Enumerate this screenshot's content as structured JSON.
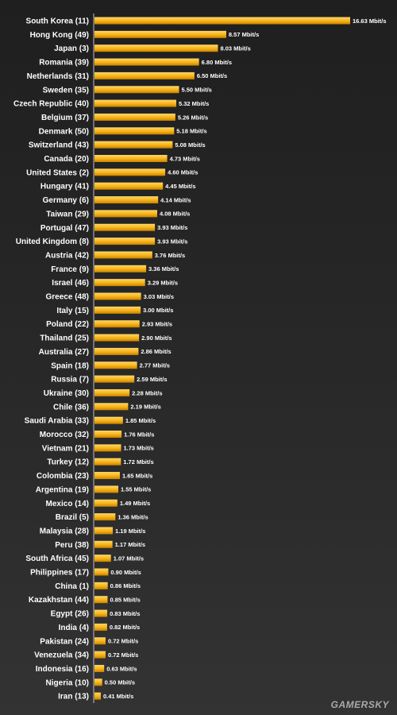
{
  "chart_data": {
    "type": "bar",
    "orientation": "horizontal",
    "categories": [
      "South Korea (11)",
      "Hong Kong (49)",
      "Japan (3)",
      "Romania (39)",
      "Netherlands (31)",
      "Sweden (35)",
      "Czech Republic (40)",
      "Belgium (37)",
      "Denmark (50)",
      "Switzerland (43)",
      "Canada (20)",
      "United States (2)",
      "Hungary (41)",
      "Germany (6)",
      "Taiwan (29)",
      "Portugal (47)",
      "United Kingdom (8)",
      "Austria (42)",
      "France (9)",
      "Israel (46)",
      "Greece (48)",
      "Italy (15)",
      "Poland (22)",
      "Thailand (25)",
      "Australia (27)",
      "Spain (18)",
      "Russia (7)",
      "Ukraine (30)",
      "Chile (36)",
      "Saudi Arabia (33)",
      "Morocco (32)",
      "Vietnam (21)",
      "Turkey (12)",
      "Colombia (23)",
      "Argentina (19)",
      "Mexico (14)",
      "Brazil (5)",
      "Malaysia (28)",
      "Peru (38)",
      "South Africa (45)",
      "Philippines (17)",
      "China (1)",
      "Kazakhstan (44)",
      "Egypt (26)",
      "India (4)",
      "Pakistan (24)",
      "Venezuela (34)",
      "Indonesia (16)",
      "Nigeria (10)",
      "Iran (13)"
    ],
    "values": [
      16.63,
      8.57,
      8.03,
      6.8,
      6.5,
      5.5,
      5.32,
      5.26,
      5.18,
      5.08,
      4.73,
      4.6,
      4.45,
      4.14,
      4.08,
      3.93,
      3.93,
      3.76,
      3.36,
      3.29,
      3.03,
      3.0,
      2.93,
      2.9,
      2.86,
      2.77,
      2.59,
      2.28,
      2.19,
      1.85,
      1.76,
      1.73,
      1.72,
      1.65,
      1.55,
      1.49,
      1.36,
      1.19,
      1.17,
      1.07,
      0.9,
      0.86,
      0.85,
      0.83,
      0.82,
      0.72,
      0.72,
      0.63,
      0.5,
      0.41
    ],
    "value_labels": [
      "16.63 Mbit/s",
      "8.57 Mbit/s",
      "8.03 Mbit/s",
      "6.80 Mbit/s",
      "6.50 Mbit/s",
      "5.50 Mbit/s",
      "5.32 Mbit/s",
      "5.26 Mbit/s",
      "5.18 Mbit/s",
      "5.08 Mbit/s",
      "4.73 Mbit/s",
      "4.60 Mbit/s",
      "4.45 Mbit/s",
      "4.14 Mbit/s",
      "4.08 Mbit/s",
      "3.93 Mbit/s",
      "3.93 Mbit/s",
      "3.76 Mbit/s",
      "3.36 Mbit/s",
      "3.29 Mbit/s",
      "3.03 Mbit/s",
      "3.00 Mbit/s",
      "2.93 Mbit/s",
      "2.90 Mbit/s",
      "2.86 Mbit/s",
      "2.77 Mbit/s",
      "2.59 Mbit/s",
      "2.28 Mbit/s",
      "2.19 Mbit/s",
      "1.85 Mbit/s",
      "1.76 Mbit/s",
      "1.73 Mbit/s",
      "1.72 Mbit/s",
      "1.65 Mbit/s",
      "1.55 Mbit/s",
      "1.49 Mbit/s",
      "1.36 Mbit/s",
      "1.19 Mbit/s",
      "1.17 Mbit/s",
      "1.07 Mbit/s",
      "0.90 Mbit/s",
      "0.86 Mbit/s",
      "0.85 Mbit/s",
      "0.83 Mbit/s",
      "0.82 Mbit/s",
      "0.72 Mbit/s",
      "0.72 Mbit/s",
      "0.63 Mbit/s",
      "0.50 Mbit/s",
      "0.41 Mbit/s"
    ],
    "unit": "Mbit/s",
    "xlim": [
      0,
      16.63
    ],
    "grid": false,
    "legend": "none",
    "colors": {
      "bar_light": "#ffd768",
      "bar_mid": "#f7b217",
      "bar_dark": "#c88300",
      "axis": "#bfbfbf",
      "text": "#ffffff"
    }
  },
  "watermark": "GAMERSKY"
}
